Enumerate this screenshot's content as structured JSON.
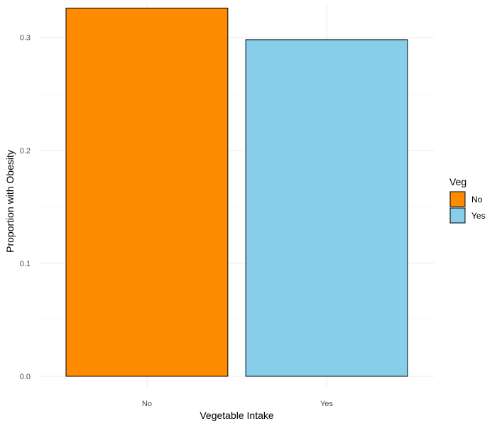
{
  "chart_data": {
    "type": "bar",
    "categories": [
      "No",
      "Yes"
    ],
    "values": [
      0.326,
      0.298
    ],
    "colors": [
      "#FF8C00",
      "#87CEEB"
    ],
    "bar_outline_color": "#000000",
    "xlabel": "Vegetable Intake",
    "ylabel": "Proportion with Obesity",
    "ylim": [
      0,
      0.33
    ],
    "yticks": [
      0.0,
      0.1,
      0.2,
      0.3
    ],
    "ytick_labels": [
      "0.0",
      "0.1",
      "0.2",
      "0.3"
    ],
    "grid": true,
    "legend": {
      "title": "Veg",
      "position": "right",
      "entries": [
        "No",
        "Yes"
      ]
    }
  }
}
